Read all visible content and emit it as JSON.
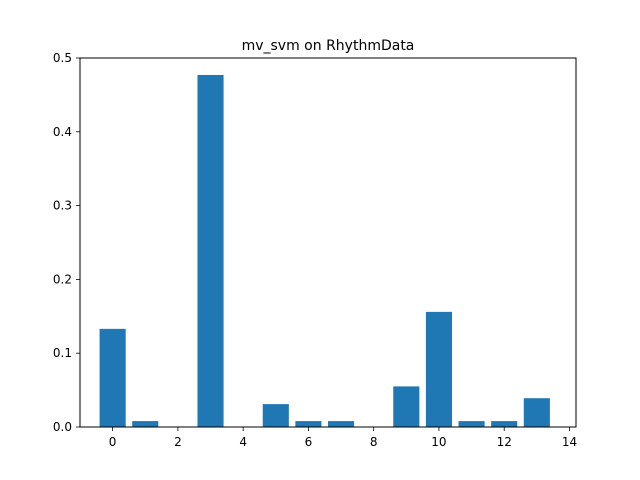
{
  "chart_data": {
    "type": "bar",
    "title": "mv_svm on RhythmData",
    "xlabel": "",
    "ylabel": "",
    "x": [
      0,
      1,
      2,
      3,
      4,
      5,
      6,
      7,
      8,
      9,
      10,
      11,
      12,
      13
    ],
    "values": [
      0.133,
      0.008,
      0.0,
      0.477,
      0.0,
      0.031,
      0.008,
      0.008,
      0.0,
      0.055,
      0.156,
      0.008,
      0.008,
      0.039
    ],
    "xlim": [
      -1.0,
      14.2
    ],
    "ylim": [
      0,
      0.5
    ],
    "xticks": [
      0,
      2,
      4,
      6,
      8,
      10,
      12,
      14
    ],
    "yticks": [
      0.0,
      0.1,
      0.2,
      0.3,
      0.4,
      0.5
    ],
    "xtick_labels": [
      "0",
      "2",
      "4",
      "6",
      "8",
      "10",
      "12",
      "14"
    ],
    "ytick_labels": [
      "0.0",
      "0.1",
      "0.2",
      "0.3",
      "0.4",
      "0.5"
    ],
    "grid": false,
    "legend": "none",
    "bar_color": "#1f77b4"
  }
}
